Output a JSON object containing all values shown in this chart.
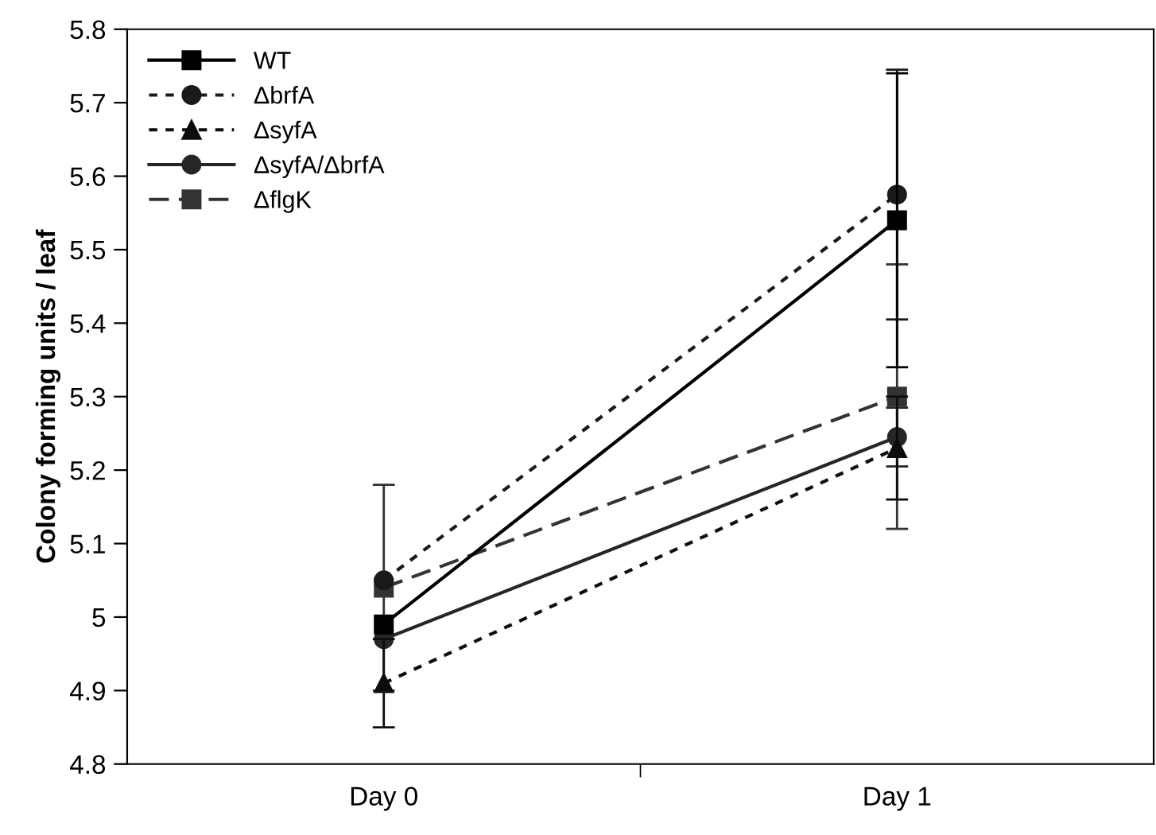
{
  "chart_data": {
    "type": "line",
    "ylabel": "Colony forming units / leaf",
    "categories": [
      "Day 0",
      "Day 1"
    ],
    "series": [
      {
        "name": "WT",
        "color": "#000000",
        "values": [
          4.99,
          5.54
        ],
        "errors": [
          null,
          0.2
        ],
        "marker": "square",
        "line_style": "solid"
      },
      {
        "name": "ΔbrfA",
        "color": "#1a1a1a",
        "values": [
          5.05,
          5.575
        ],
        "errors": [
          null,
          0.17
        ],
        "marker": "circle",
        "line_style": "dotted"
      },
      {
        "name": "ΔsyfA",
        "color": "#0d0d0d",
        "values": [
          4.91,
          5.23
        ],
        "errors": [
          0.06,
          0.07
        ],
        "marker": "triangle",
        "line_style": "dotted"
      },
      {
        "name": "ΔsyfA/ΔbrfA",
        "color": "#262626",
        "values": [
          4.97,
          5.245
        ],
        "errors": [
          null,
          0.04
        ],
        "marker": "circle",
        "line_style": "solid"
      },
      {
        "name": "ΔflgK",
        "color": "#333333",
        "values": [
          5.04,
          5.3
        ],
        "errors": [
          0.14,
          0.18
        ],
        "marker": "square",
        "line_style": "dashed"
      }
    ],
    "ylim": [
      4.8,
      5.8
    ],
    "yticks": [
      4.8,
      4.9,
      5,
      5.1,
      5.2,
      5.3,
      5.4,
      5.5,
      5.6,
      5.7,
      5.8
    ],
    "grid": false,
    "legend": "top left"
  }
}
